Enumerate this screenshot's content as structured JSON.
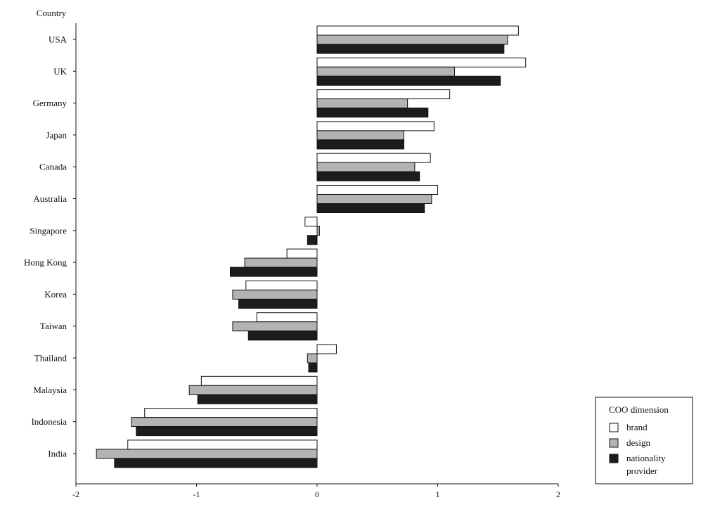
{
  "chart_data": {
    "type": "bar",
    "orientation": "horizontal",
    "ylabel": "Country",
    "xlabel": "",
    "xlim": [
      -2,
      2
    ],
    "xticks": [
      "-2",
      "-1",
      "0",
      "1",
      "2"
    ],
    "categories": [
      "USA",
      "UK",
      "Germany",
      "Japan",
      "Canada",
      "Australia",
      "Singapore",
      "Hong Kong",
      "Korea",
      "Taiwan",
      "Thailand",
      "Malaysia",
      "Indonesia",
      "India"
    ],
    "series": [
      {
        "name": "brand",
        "color": "#ffffff",
        "values": [
          1.67,
          1.73,
          1.1,
          0.97,
          0.94,
          1.0,
          -0.1,
          -0.25,
          -0.59,
          -0.5,
          0.16,
          -0.96,
          -1.43,
          -1.57
        ]
      },
      {
        "name": "design",
        "color": "#b3b3b3",
        "values": [
          1.58,
          1.14,
          0.75,
          0.72,
          0.81,
          0.95,
          0.02,
          -0.6,
          -0.7,
          -0.7,
          -0.08,
          -1.06,
          -1.54,
          -1.83
        ]
      },
      {
        "name": "nationality provider",
        "color": "#1c1c1c",
        "values": [
          1.55,
          1.52,
          0.92,
          0.72,
          0.85,
          0.89,
          -0.08,
          -0.72,
          -0.65,
          -0.57,
          -0.07,
          -0.99,
          -1.5,
          -1.68
        ]
      }
    ],
    "legend": {
      "title": "COO dimension",
      "items": [
        {
          "label_lines": [
            "brand"
          ]
        },
        {
          "label_lines": [
            "design"
          ]
        },
        {
          "label_lines": [
            "nationality",
            "provider"
          ]
        }
      ],
      "placement": "bottom-right"
    },
    "grid": false
  }
}
